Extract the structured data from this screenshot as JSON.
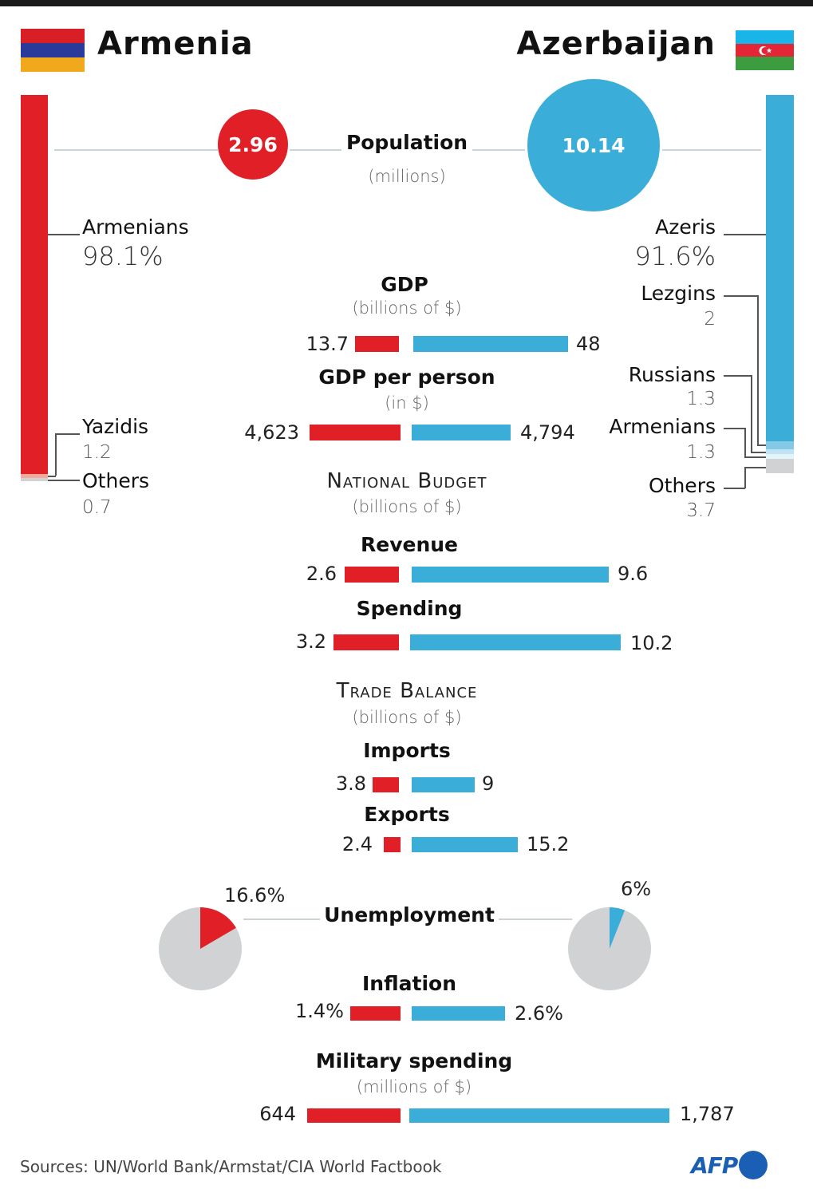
{
  "header": {
    "left_country": "Armenia",
    "right_country": "Azerbaijan"
  },
  "colors": {
    "armenia": "#e01f26",
    "azerbaijan": "#3aaed8",
    "neutral": "#d0d2d3",
    "afp": "#1a5fb4"
  },
  "flags": {
    "armenia": [
      "#d91f26",
      "#2a3a9a",
      "#f2a81d"
    ],
    "azerbaijan": [
      "#19b4e8",
      "#e32636",
      "#3c9c3f"
    ]
  },
  "population": {
    "label": "Population",
    "unit": "(millions)",
    "armenia": "2.96",
    "azerbaijan": "10.14"
  },
  "ethnicity": {
    "armenia": [
      {
        "name": "Armenians",
        "value": "98.1%"
      },
      {
        "name": "Yazidis",
        "value": "1.2"
      },
      {
        "name": "Others",
        "value": "0.7"
      }
    ],
    "azerbaijan": [
      {
        "name": "Azeris",
        "value": "91.6%"
      },
      {
        "name": "Lezgins",
        "value": "2"
      },
      {
        "name": "Russians",
        "value": "1.3"
      },
      {
        "name": "Armenians",
        "value": "1.3"
      },
      {
        "name": "Others",
        "value": "3.7"
      }
    ]
  },
  "sections": {
    "national_budget": {
      "title": "National Budget",
      "unit": "(billions of $)"
    },
    "trade_balance": {
      "title": "Trade Balance",
      "unit": "(billions of $)"
    }
  },
  "metrics": {
    "gdp": {
      "label": "GDP",
      "unit": "(billions of $)",
      "armenia": "13.7",
      "azerbaijan": "48"
    },
    "gdp_per_person": {
      "label": "GDP per person",
      "unit": "(in $)",
      "armenia": "4,623",
      "azerbaijan": "4,794"
    },
    "revenue": {
      "label": "Revenue",
      "armenia": "2.6",
      "azerbaijan": "9.6"
    },
    "spending": {
      "label": "Spending",
      "armenia": "3.2",
      "azerbaijan": "10.2"
    },
    "imports": {
      "label": "Imports",
      "armenia": "3.8",
      "azerbaijan": "9"
    },
    "exports": {
      "label": "Exports",
      "armenia": "2.4",
      "azerbaijan": "15.2"
    },
    "unemployment": {
      "label": "Unemployment",
      "armenia": "16.6%",
      "azerbaijan": "6%"
    },
    "inflation": {
      "label": "Inflation",
      "armenia": "1.4%",
      "azerbaijan": "2.6%"
    },
    "military": {
      "label": "Military spending",
      "unit": "(millions of $)",
      "armenia": "644",
      "azerbaijan": "1,787"
    }
  },
  "footer": {
    "sources": "Sources: UN/World Bank/Armstat/CIA World Factbook",
    "logo": "AFP"
  },
  "chart_data": {
    "type": "bar",
    "title": "Armenia vs Azerbaijan",
    "series": [
      {
        "name": "Armenia",
        "color": "#e01f26"
      },
      {
        "name": "Azerbaijan",
        "color": "#3aaed8"
      }
    ],
    "population_millions": {
      "Armenia": 2.96,
      "Azerbaijan": 10.14
    },
    "ethnic_groups_pct": {
      "Armenia": {
        "Armenians": 98.1,
        "Yazidis": 1.2,
        "Others": 0.7
      },
      "Azerbaijan": {
        "Azeris": 91.6,
        "Lezgins": 2,
        "Russians": 1.3,
        "Armenians": 1.3,
        "Others": 3.7
      }
    },
    "categories": [
      "GDP",
      "GDP per person",
      "Revenue",
      "Spending",
      "Imports",
      "Exports",
      "Inflation",
      "Military spending"
    ],
    "units": [
      "billions of $",
      "$",
      "billions of $",
      "billions of $",
      "billions of $",
      "billions of $",
      "%",
      "millions of $"
    ],
    "armenia_values": [
      13.7,
      4623,
      2.6,
      3.2,
      3.8,
      2.4,
      1.4,
      644
    ],
    "azerbaijan_values": [
      48,
      4794,
      9.6,
      10.2,
      9,
      15.2,
      2.6,
      1787
    ],
    "unemployment_pct": {
      "Armenia": 16.6,
      "Azerbaijan": 6
    },
    "source": "UN/World Bank/Armstat/CIA World Factbook"
  }
}
